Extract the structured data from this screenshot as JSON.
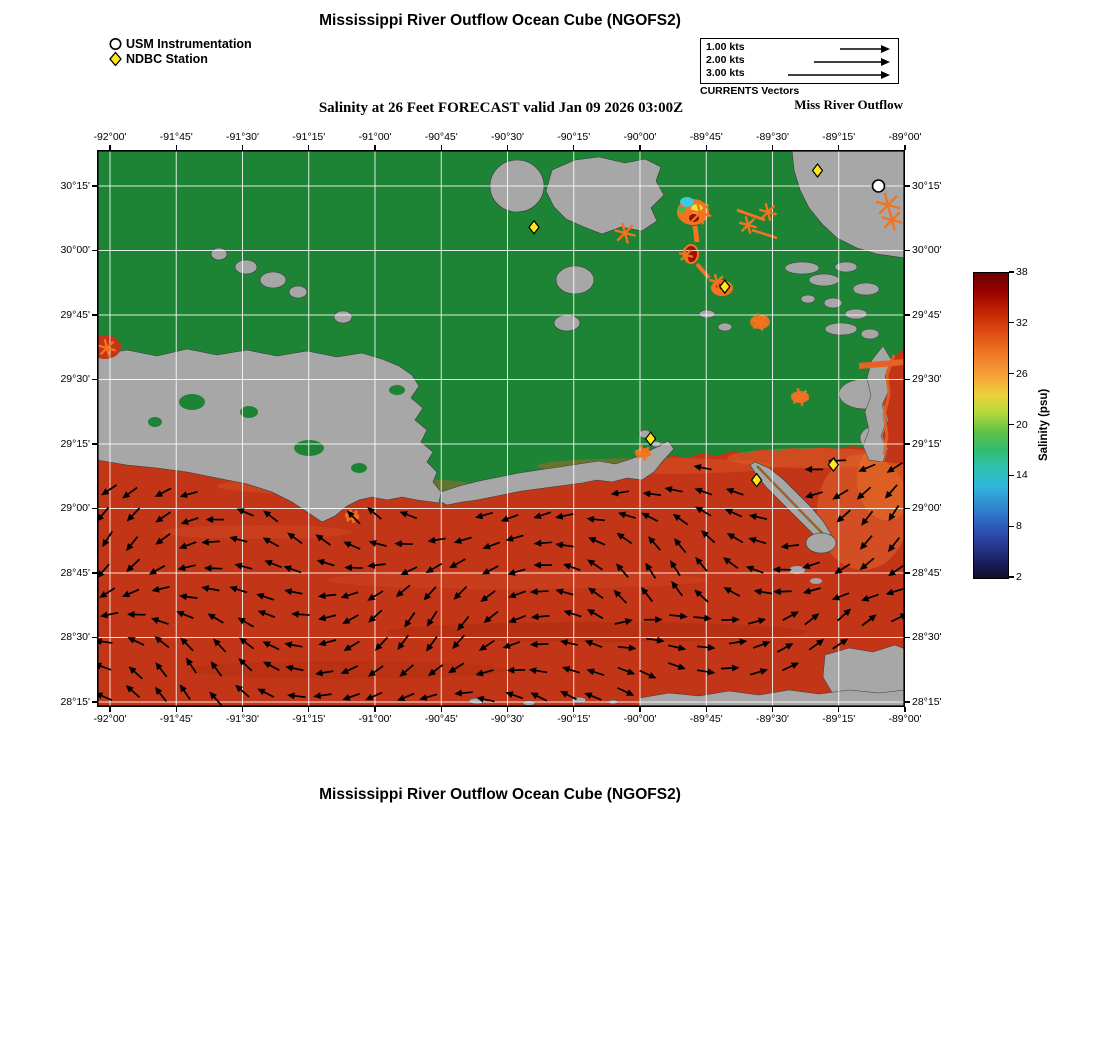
{
  "titles": {
    "top": "Mississippi River Outflow Ocean Cube (NGOFS2)",
    "bottom": "Mississippi River Outflow Ocean Cube (NGOFS2)"
  },
  "marker_legend": {
    "usm": "USM Instrumentation",
    "ndbc": "NDBC Station"
  },
  "vector_legend": {
    "rows": [
      "1.00 kts",
      "2.00 kts",
      "3.00 kts"
    ],
    "caption": "CURRENTS Vectors",
    "region_label": "Miss River Outflow"
  },
  "map": {
    "subtitle": "Salinity at 26 Feet FORECAST valid Jan 09 2026 03:00Z"
  },
  "chart_data": {
    "type": "heatmap",
    "title": "Mississippi River Outflow Ocean Cube (NGOFS2)",
    "subtitle": "Salinity at 26 Feet FORECAST valid Jan 09 2026 03:00Z",
    "variable": "Salinity",
    "units": "psu",
    "depth_label": "26 Feet",
    "valid_time": "Jan 09 2026 03:00Z",
    "model": "NGOFS2",
    "lon_axis": {
      "values": [
        -92,
        -91.75,
        -91.5,
        -91.25,
        -91,
        -90.75,
        -90.5,
        -90.25,
        -90,
        -89.75,
        -89.5,
        -89.25,
        -89
      ],
      "labels": [
        "-92°00'",
        "-91°45'",
        "-91°30'",
        "-91°15'",
        "-91°00'",
        "-90°45'",
        "-90°30'",
        "-90°15'",
        "-90°00'",
        "-89°45'",
        "-89°30'",
        "-89°15'",
        "-89°00'"
      ]
    },
    "lat_axis": {
      "values": [
        30.25,
        30.0,
        29.75,
        29.5,
        29.25,
        29.0,
        28.75,
        28.5,
        28.25
      ],
      "labels": [
        "30°15'",
        "30°00'",
        "29°45'",
        "29°30'",
        "29°15'",
        "29°00'",
        "28°45'",
        "28°30'",
        "28°15'"
      ]
    },
    "colorbar": {
      "label": "Salinity (psu)",
      "min": 2,
      "max": 38,
      "ticks": [
        38,
        32,
        26,
        20,
        14,
        8,
        2
      ],
      "gradient": [
        {
          "p": 0,
          "c": "#6a0000"
        },
        {
          "p": 6,
          "c": "#970100"
        },
        {
          "p": 13,
          "c": "#c22603"
        },
        {
          "p": 20,
          "c": "#e04f12"
        },
        {
          "p": 27,
          "c": "#ef7b27"
        },
        {
          "p": 33,
          "c": "#f79d38"
        },
        {
          "p": 40,
          "c": "#ecd23a"
        },
        {
          "p": 46,
          "c": "#b3d83c"
        },
        {
          "p": 52,
          "c": "#5fc245"
        },
        {
          "p": 58,
          "c": "#33bb6e"
        },
        {
          "p": 64,
          "c": "#2fc2b2"
        },
        {
          "p": 70,
          "c": "#30b4dc"
        },
        {
          "p": 77,
          "c": "#2f85cf"
        },
        {
          "p": 84,
          "c": "#2e54b7"
        },
        {
          "p": 90,
          "c": "#26358c"
        },
        {
          "p": 96,
          "c": "#181a50"
        },
        {
          "p": 100,
          "c": "#100f2b"
        }
      ]
    },
    "field_summary": {
      "open_gulf_psu": "34-36 (red field with black current vectors)",
      "low_salinity_patches_psu": "2-26 in passes near Lake Pontchartrain / Rigolets (cyan-yellow-orange patch)",
      "land_color": "#1e8435",
      "nodata_land_color": "#a7a7a7",
      "water_color": "#c23517"
    },
    "stations": {
      "ndbc": [
        {
          "lon": -89.33,
          "lat": 30.31
        },
        {
          "lon": -90.4,
          "lat": 30.09
        },
        {
          "lon": -89.68,
          "lat": 29.86
        },
        {
          "lon": -89.96,
          "lat": 29.27
        },
        {
          "lon": -89.56,
          "lat": 29.11
        },
        {
          "lon": -89.27,
          "lat": 29.17
        }
      ],
      "usm": [
        {
          "lon": -89.1,
          "lat": 30.25
        }
      ]
    },
    "currents": {
      "legend_speeds_kts": [
        1.0,
        2.0,
        3.0
      ],
      "caption": "CURRENTS Vectors",
      "note": "Black arrows: gridded model currents over open Gulf water; orange arrows: strong currents in tidal passes and river outflow channels"
    }
  }
}
